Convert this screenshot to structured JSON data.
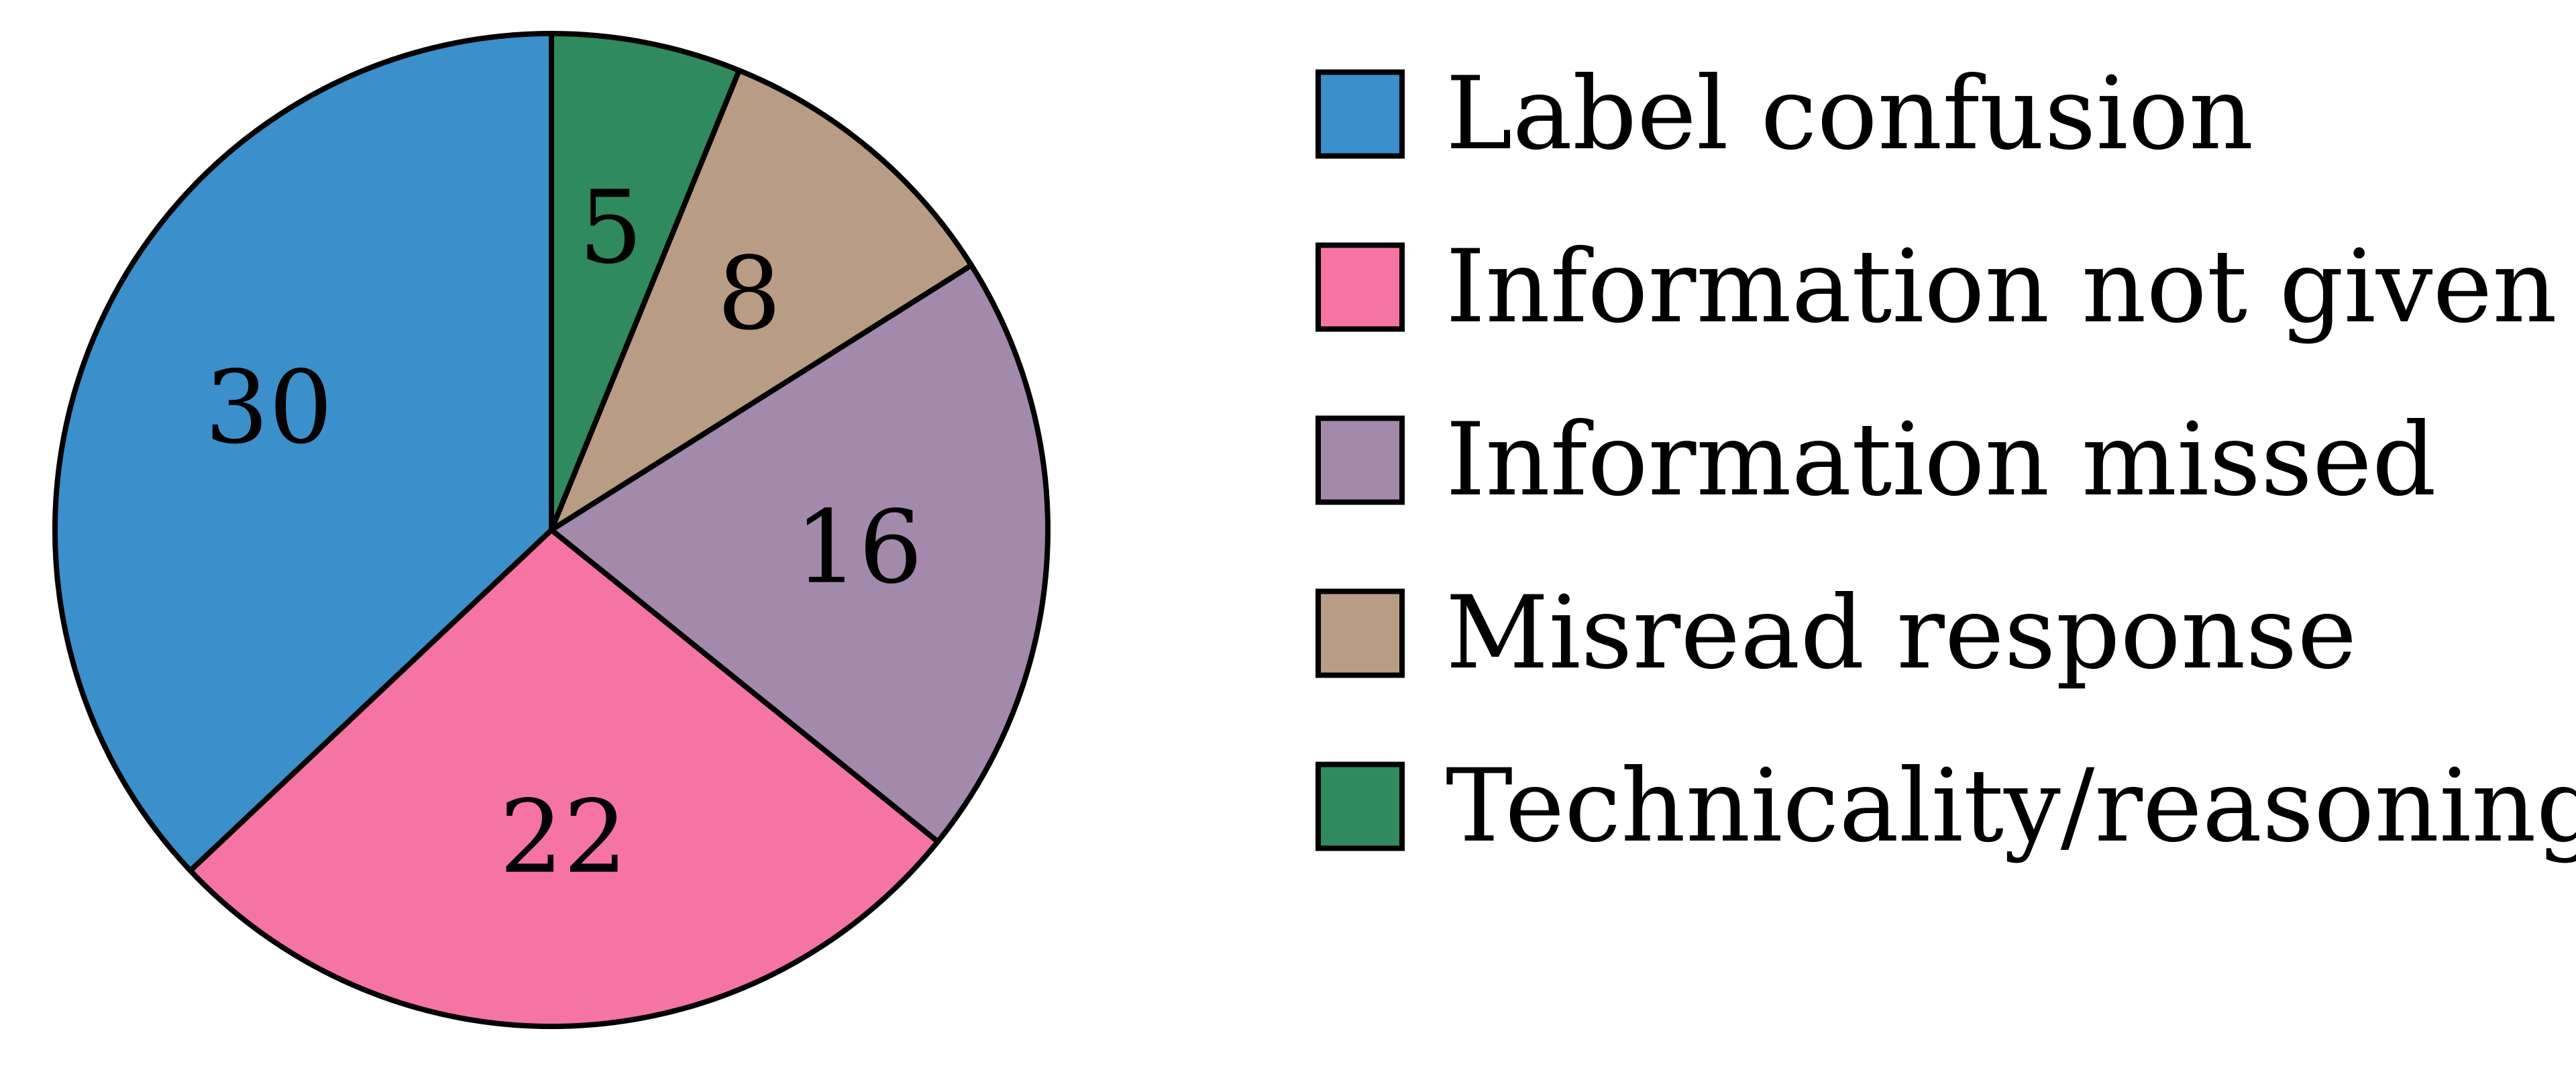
{
  "chart_data": {
    "type": "pie",
    "start_angle_deg": 90,
    "direction": "clockwise",
    "legend_placement": "right",
    "slices": [
      {
        "label": "Technicality/reasoning",
        "value": 5,
        "color": "#2f8a5d"
      },
      {
        "label": "Misread response",
        "value": 8,
        "color": "#b99c84"
      },
      {
        "label": "Information missed",
        "value": 16,
        "color": "#a389ab"
      },
      {
        "label": "Information not given",
        "value": 22,
        "color": "#f674a3"
      },
      {
        "label": "Label confusion",
        "value": 30,
        "color": "#3b8fca"
      }
    ],
    "legend_order": [
      "Label confusion",
      "Information not given",
      "Information missed",
      "Misread response",
      "Technicality/reasoning"
    ]
  }
}
